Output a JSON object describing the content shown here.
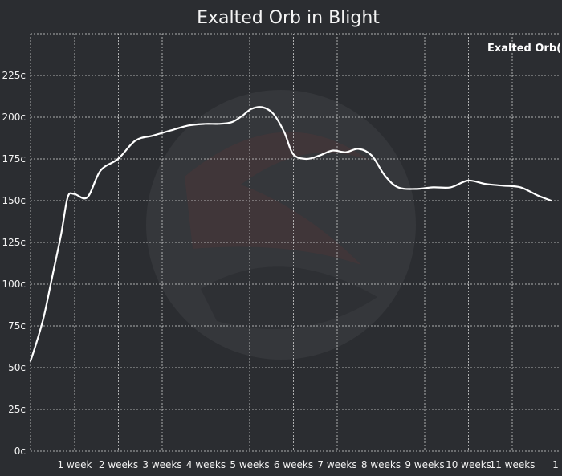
{
  "chart_data": {
    "type": "line",
    "title": "Exalted Orb in Blight",
    "series": [
      {
        "name": "Exalted Orb(I",
        "x": [
          0,
          0.1,
          0.3,
          0.5,
          0.7,
          0.85,
          1.0,
          1.3,
          1.6,
          2.0,
          2.4,
          2.8,
          3.2,
          3.6,
          4.0,
          4.3,
          4.6,
          4.85,
          5.05,
          5.3,
          5.55,
          5.8,
          6.0,
          6.3,
          6.6,
          6.9,
          7.2,
          7.5,
          7.8,
          8.1,
          8.4,
          8.8,
          9.2,
          9.6,
          10.0,
          10.4,
          10.8,
          11.2,
          11.6,
          11.9
        ],
        "values": [
          54,
          62,
          80,
          105,
          130,
          152,
          154,
          152,
          168,
          175,
          186,
          189,
          192,
          195,
          196,
          196,
          197,
          201,
          205,
          206,
          202,
          191,
          178,
          175,
          177,
          180,
          179,
          181,
          177,
          165,
          158,
          157,
          158,
          158,
          162,
          160,
          159,
          158,
          153,
          150
        ]
      }
    ],
    "xticks": [
      "1 week",
      "2 weeks",
      "3 weeks",
      "4 weeks",
      "5 weeks",
      "6 weeks",
      "7 weeks",
      "8 weeks",
      "9 weeks",
      "10 weeks",
      "11 weeks",
      "1"
    ],
    "yticks": [
      "0c",
      "25c",
      "50c",
      "75c",
      "100c",
      "125c",
      "150c",
      "175c",
      "200c",
      "225c"
    ],
    "xlim": [
      0,
      12
    ],
    "ylim": [
      0,
      250
    ],
    "grid": true,
    "legend_position": "top-right",
    "colors": {
      "background": "#2b2d31",
      "line": "#ffffff",
      "grid": "#d9d9d9",
      "text": "#f2f2f2"
    }
  }
}
